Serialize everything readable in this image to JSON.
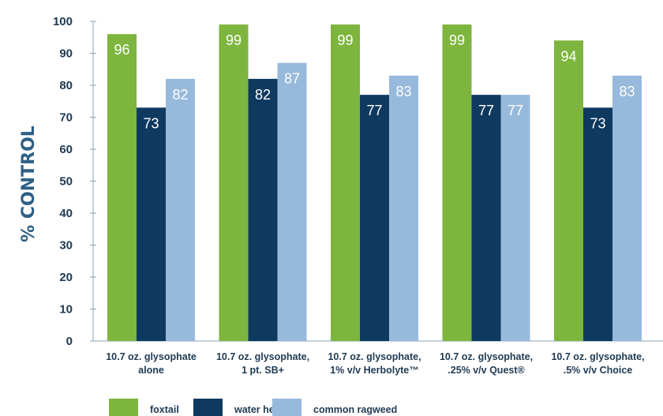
{
  "chart_data": {
    "type": "bar",
    "ylabel": "% CONTROL",
    "xlabel": "",
    "ylim": [
      0,
      100
    ],
    "yticks": [
      0,
      10,
      20,
      30,
      40,
      50,
      60,
      70,
      80,
      90,
      100
    ],
    "categories": [
      [
        "10.7 oz. glysophate",
        "alone"
      ],
      [
        "10.7 oz. glysophate,",
        "1 pt. SB+"
      ],
      [
        "10.7 oz. glysophate,",
        "1% v/v Herbolyte™"
      ],
      [
        "10.7 oz. glysophate,",
        ".25% v/v Quest®"
      ],
      [
        "10.7 oz. glysophate,",
        ".5% v/v Choice"
      ]
    ],
    "series": [
      {
        "name": "foxtail",
        "color": "#7db53f",
        "values": [
          96,
          99,
          99,
          99,
          94
        ]
      },
      {
        "name": "water hemp",
        "color": "#0f3a5f",
        "values": [
          73,
          82,
          77,
          77,
          73
        ]
      },
      {
        "name": "common ragweed",
        "color": "#97b9db",
        "values": [
          82,
          87,
          83,
          77,
          83
        ]
      }
    ],
    "data_labels": true,
    "grid": false,
    "legend_position": "bottom-left"
  }
}
